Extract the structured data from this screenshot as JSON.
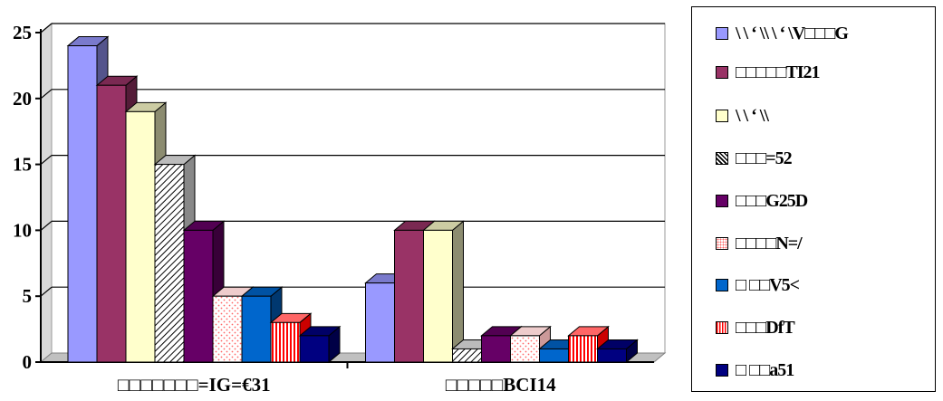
{
  "chart_data": {
    "type": "bar",
    "style": "3d-clustered-column",
    "categories": [
      "□□□□□□□=IG=€31",
      "□□□□□BCI14"
    ],
    "series": [
      {
        "name": "\\ \\ ‘ \\\\ \\ ‘ \\V□□□G",
        "color": "#9999ff",
        "pattern": "solid",
        "values": [
          24,
          6
        ]
      },
      {
        "name": "□□□□□TI21",
        "color": "#993366",
        "pattern": "solid",
        "values": [
          21,
          10
        ]
      },
      {
        "name": "\\ \\ ‘ \\\\",
        "color": "#ffffcc",
        "pattern": "solid",
        "values": [
          19,
          10
        ]
      },
      {
        "name": "□□□=52",
        "color": "#ffffff",
        "pattern": "diagonal",
        "values": [
          15,
          1
        ]
      },
      {
        "name": "□□□G25D",
        "color": "#660066",
        "pattern": "solid",
        "values": [
          10,
          2
        ]
      },
      {
        "name": "□□□□N=/",
        "color": "#ff8080",
        "pattern": "dots",
        "values": [
          5,
          2
        ]
      },
      {
        "name": "□ □□V5<",
        "color": "#0066cc",
        "pattern": "solid",
        "values": [
          5,
          1
        ]
      },
      {
        "name": "□□□DfT",
        "color": "#ff0000",
        "pattern": "vertical",
        "values": [
          3,
          2
        ]
      },
      {
        "name": "□ □□a51",
        "color": "#000080",
        "pattern": "solid",
        "values": [
          2,
          1
        ]
      }
    ],
    "yticks": [
      0,
      5,
      10,
      15,
      20,
      25
    ],
    "ylim": [
      0,
      25
    ],
    "grid": true,
    "legend_position": "right"
  }
}
